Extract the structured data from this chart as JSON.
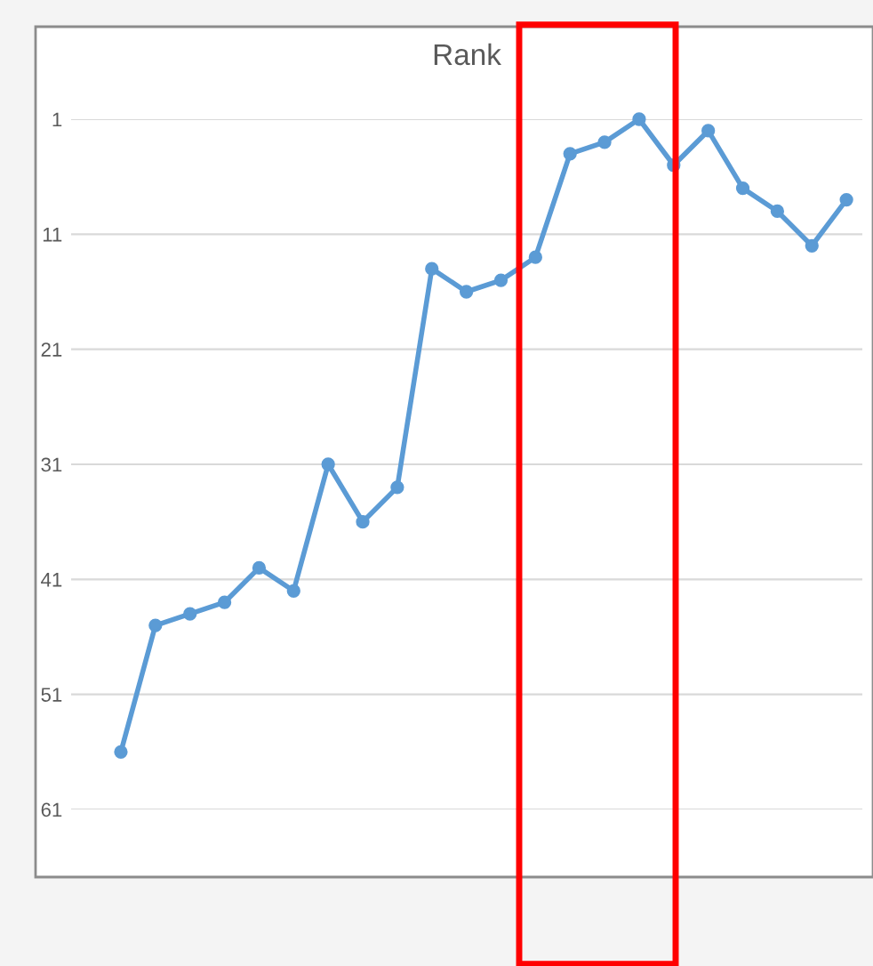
{
  "chart_data": {
    "type": "line",
    "title": "Rank",
    "categories": [
      null,
      null,
      null,
      null,
      null,
      null,
      null,
      null,
      null,
      null,
      null,
      null,
      null,
      null,
      null,
      null,
      null,
      null,
      null,
      null,
      null,
      null
    ],
    "series": [
      {
        "color": "#5b9bd5",
        "values": [
          56,
          45,
          44,
          43,
          40,
          42,
          31,
          36,
          33,
          14,
          16,
          15,
          13,
          4,
          3,
          1,
          5,
          2,
          7,
          9,
          12,
          8
        ]
      }
    ],
    "ylim": [
      61,
      1
    ],
    "yticks": [
      1,
      11,
      21,
      31,
      41,
      51,
      61
    ],
    "grid": "y",
    "marker": "circle",
    "line_style": "solid",
    "tick_labels": "y"
  }
}
